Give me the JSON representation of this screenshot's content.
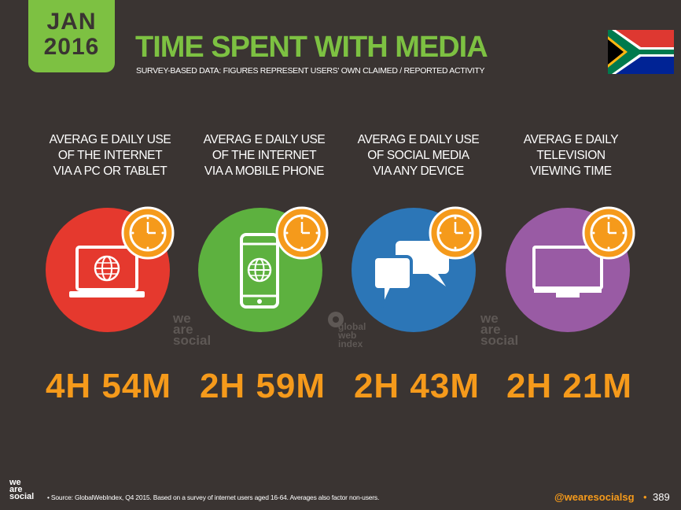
{
  "date_badge": {
    "month": "JAN",
    "year": "2016"
  },
  "title": "TIME SPENT WITH MEDIA",
  "subtitle": "SURVEY-BASED DATA: FIGURES REPRESENT USERS' OWN CLAIMED / REPORTED ACTIVITY",
  "flag": "south-africa-flag",
  "colors": {
    "background": "#3a3432",
    "accent_green": "#7dc142",
    "accent_orange": "#f59a1b",
    "red": "#e5392e",
    "green": "#5db13f",
    "blue": "#2c76b7",
    "purple": "#995ba4"
  },
  "metrics": [
    {
      "label_lines": [
        "AVERAG E DAILY USE",
        "OF THE INTERNET",
        "VIA A PC OR TABLET"
      ],
      "value": "4H 54M",
      "icon": "laptop-globe-icon"
    },
    {
      "label_lines": [
        "AVERAG E DAILY USE",
        "OF THE INTERNET",
        "VIA A MOBILE PHONE"
      ],
      "value": "2H 59M",
      "icon": "mobile-globe-icon"
    },
    {
      "label_lines": [
        "AVERAG E DAILY USE",
        "OF SOCIAL MEDIA",
        "VIA ANY DEVICE"
      ],
      "value": "2H 43M",
      "icon": "chat-bubbles-icon"
    },
    {
      "label_lines": [
        "AVERAG E DAILY",
        "TELEVISION",
        "VIEWING TIME"
      ],
      "value": "2H 21M",
      "icon": "television-icon"
    }
  ],
  "watermarks": {
    "we_are_social_lines": [
      "we",
      "are",
      "social"
    ],
    "gwi_lines": [
      "global",
      "web",
      "index"
    ]
  },
  "footer": {
    "logo_lines": [
      "we",
      "are",
      "social"
    ],
    "source": "• Source: GlobalWebIndex, Q4 2015. Based on a survey of internet users aged 16-64. Averages also factor non-users.",
    "handle": "@wearesocialsg",
    "separator": "•",
    "page": "389"
  }
}
